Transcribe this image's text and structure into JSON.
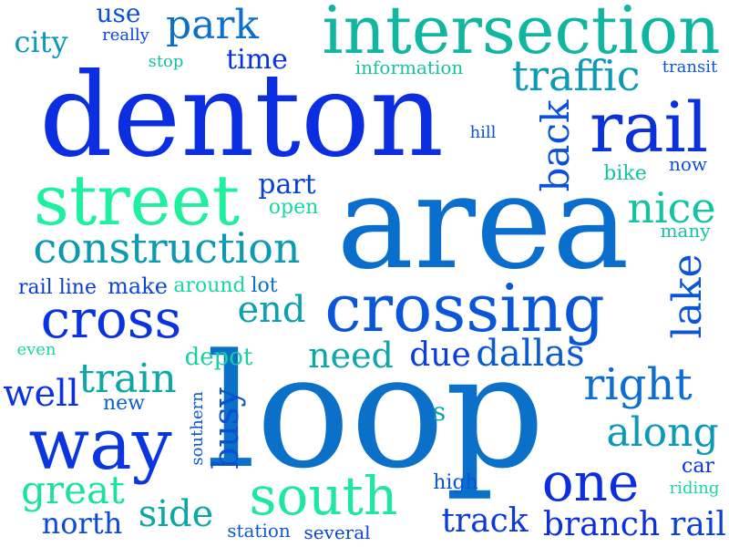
{
  "words": [
    {
      "text": "denton",
      "color": "#0a2ee0"
    },
    {
      "text": "area",
      "color": "#0a6fcc"
    },
    {
      "text": "loop",
      "color": "#0a70c8"
    },
    {
      "text": "intersection",
      "color": "#10b6a0"
    },
    {
      "text": "street",
      "color": "#1ef0a0"
    },
    {
      "text": "crossing",
      "color": "#0a56d8"
    },
    {
      "text": "construction",
      "color": "#0c9ab0"
    },
    {
      "text": "rail",
      "color": "#0a32d8"
    },
    {
      "text": "way",
      "color": "#0a36e0"
    },
    {
      "text": "cross",
      "color": "#0a32e0"
    },
    {
      "text": "south",
      "color": "#1ee8a0"
    },
    {
      "text": "one",
      "color": "#0a2ee0"
    },
    {
      "text": "train",
      "color": "#0ca8a8"
    },
    {
      "text": "traffic",
      "color": "#0c9ab8"
    },
    {
      "text": "park",
      "color": "#0c70c8"
    },
    {
      "text": "nice",
      "color": "#14c4a0"
    },
    {
      "text": "right",
      "color": "#0c6ed0"
    },
    {
      "text": "along",
      "color": "#0c98b8"
    },
    {
      "text": "lake",
      "color": "#0a56d8"
    },
    {
      "text": "back",
      "color": "#0a50d8"
    },
    {
      "text": "dallas",
      "color": "#0a5ad0"
    },
    {
      "text": "end",
      "color": "#0ca0b0"
    },
    {
      "text": "need",
      "color": "#0ca8a8"
    },
    {
      "text": "due",
      "color": "#0a3ee0"
    },
    {
      "text": "well",
      "color": "#0a32e0"
    },
    {
      "text": "great",
      "color": "#1ae0a0"
    },
    {
      "text": "side",
      "color": "#0ca8a8"
    },
    {
      "text": "north",
      "color": "#0a4ad8"
    },
    {
      "text": "track",
      "color": "#0a3ad8"
    },
    {
      "text": "branch",
      "color": "#0a2ee0"
    },
    {
      "text": "rail",
      "color": "#0a42d8"
    },
    {
      "text": "busy",
      "color": "#0a50d0"
    },
    {
      "text": "city",
      "color": "#0c98b8"
    },
    {
      "text": "use",
      "color": "#0a50d8"
    },
    {
      "text": "time",
      "color": "#0a32e0"
    },
    {
      "text": "part",
      "color": "#0a3ed8"
    },
    {
      "text": "open",
      "color": "#18d8a0"
    },
    {
      "text": "rail line",
      "color": "#0a3ad8"
    },
    {
      "text": "make",
      "color": "#0a46d8"
    },
    {
      "text": "around",
      "color": "#18d8a0"
    },
    {
      "text": "lot",
      "color": "#0a70c8"
    },
    {
      "text": "depot",
      "color": "#18d0a0"
    },
    {
      "text": "new",
      "color": "#0a60d0"
    },
    {
      "text": "even",
      "color": "#18d8a0"
    },
    {
      "text": "southern",
      "color": "#0a56d8"
    },
    {
      "text": "s",
      "color": "#0ca8a8"
    },
    {
      "text": "high",
      "color": "#0a56d8"
    },
    {
      "text": "car",
      "color": "#0a32e0"
    },
    {
      "text": "riding",
      "color": "#18d8a0"
    },
    {
      "text": "station",
      "color": "#0a5ad0"
    },
    {
      "text": "several",
      "color": "#0a46d8"
    },
    {
      "text": "bike",
      "color": "#14c4a0"
    },
    {
      "text": "now",
      "color": "#0a50d8"
    },
    {
      "text": "many",
      "color": "#14c4a0"
    },
    {
      "text": "hill",
      "color": "#0a50d8"
    },
    {
      "text": "information",
      "color": "#14c4a0"
    },
    {
      "text": "transit",
      "color": "#0a56d8"
    },
    {
      "text": "stop",
      "color": "#14c4a0"
    },
    {
      "text": "really",
      "color": "#0a46d8"
    }
  ]
}
